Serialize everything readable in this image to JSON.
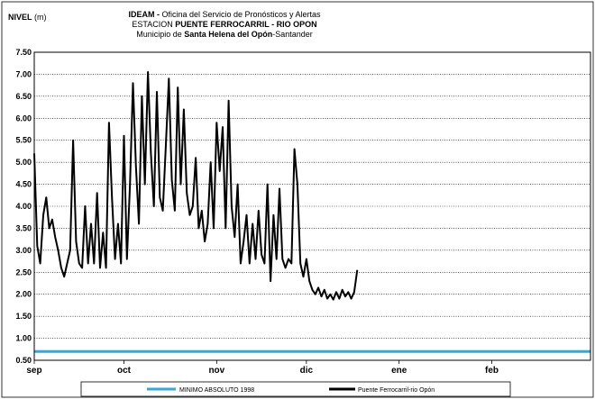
{
  "chart_data": {
    "type": "line",
    "ylabel_bold": "NIVEL",
    "ylabel_unit": "(m)",
    "title_lines": [
      {
        "bold_prefix": "IDEAM - ",
        "text": "Oficina del Servicio de Pronósticos y Alertas"
      },
      {
        "prefix": "ESTACION ",
        "bold": "PUENTE FERROCARRIL - RIO OPON"
      },
      {
        "prefix": "Municipio de ",
        "bold": "Santa Helena del Opón",
        "suffix": "-Santander"
      }
    ],
    "ylim": [
      0.5,
      7.5
    ],
    "yticks": [
      "7.50",
      "7.00",
      "6.50",
      "6.00",
      "5.50",
      "5.00",
      "4.50",
      "4.00",
      "3.50",
      "3.00",
      "2.50",
      "2.00",
      "1.50",
      "1.00",
      "0.50"
    ],
    "ytick_values": [
      7.5,
      7.0,
      6.5,
      6.0,
      5.5,
      5.0,
      4.5,
      4.0,
      3.5,
      3.0,
      2.5,
      2.0,
      1.5,
      1.0,
      0.5
    ],
    "xlim": [
      "2023-09-01",
      "2024-03-05"
    ],
    "xticks": [
      {
        "label": "sep",
        "date": "2023-09-01"
      },
      {
        "label": "oct",
        "date": "2023-10-01"
      },
      {
        "label": "nov",
        "date": "2023-11-01"
      },
      {
        "label": "dic",
        "date": "2023-12-01"
      },
      {
        "label": "ene",
        "date": "2024-01-01"
      },
      {
        "label": "feb",
        "date": "2024-02-01"
      }
    ],
    "grid": true,
    "legend_position": "bottom",
    "series": [
      {
        "name": "MINIMO ABSOLUTO 1998",
        "color": "#33a8dd",
        "constant": 0.7
      },
      {
        "name": "Puente Ferrocarril-rio Opón",
        "color": "#000000",
        "x": [
          "2023-09-01",
          "2023-09-02",
          "2023-09-03",
          "2023-09-04",
          "2023-09-05",
          "2023-09-06",
          "2023-09-07",
          "2023-09-08",
          "2023-09-09",
          "2023-09-10",
          "2023-09-11",
          "2023-09-12",
          "2023-09-13",
          "2023-09-14",
          "2023-09-15",
          "2023-09-16",
          "2023-09-17",
          "2023-09-18",
          "2023-09-19",
          "2023-09-20",
          "2023-09-21",
          "2023-09-22",
          "2023-09-23",
          "2023-09-24",
          "2023-09-25",
          "2023-09-26",
          "2023-09-27",
          "2023-09-28",
          "2023-09-29",
          "2023-09-30",
          "2023-10-01",
          "2023-10-02",
          "2023-10-03",
          "2023-10-04",
          "2023-10-05",
          "2023-10-06",
          "2023-10-07",
          "2023-10-08",
          "2023-10-09",
          "2023-10-10",
          "2023-10-11",
          "2023-10-12",
          "2023-10-13",
          "2023-10-14",
          "2023-10-15",
          "2023-10-16",
          "2023-10-17",
          "2023-10-18",
          "2023-10-19",
          "2023-10-20",
          "2023-10-21",
          "2023-10-22",
          "2023-10-23",
          "2023-10-24",
          "2023-10-25",
          "2023-10-26",
          "2023-10-27",
          "2023-10-28",
          "2023-10-29",
          "2023-10-30",
          "2023-10-31",
          "2023-11-01",
          "2023-11-02",
          "2023-11-03",
          "2023-11-04",
          "2023-11-05",
          "2023-11-06",
          "2023-11-07",
          "2023-11-08",
          "2023-11-09",
          "2023-11-10",
          "2023-11-11",
          "2023-11-12",
          "2023-11-13",
          "2023-11-14",
          "2023-11-15",
          "2023-11-16",
          "2023-11-17",
          "2023-11-18",
          "2023-11-19",
          "2023-11-20",
          "2023-11-21",
          "2023-11-22",
          "2023-11-23",
          "2023-11-24",
          "2023-11-25",
          "2023-11-26",
          "2023-11-27",
          "2023-11-28",
          "2023-11-29",
          "2023-11-30",
          "2023-12-01",
          "2023-12-02",
          "2023-12-03",
          "2023-12-04",
          "2023-12-05",
          "2023-12-06",
          "2023-12-07",
          "2023-12-08",
          "2023-12-09",
          "2023-12-10",
          "2023-12-11",
          "2023-12-12",
          "2023-12-13",
          "2023-12-14",
          "2023-12-15",
          "2023-12-16",
          "2023-12-17",
          "2023-12-18"
        ],
        "y": [
          5.2,
          3.1,
          2.7,
          3.8,
          4.2,
          3.5,
          3.7,
          3.3,
          3.0,
          2.6,
          2.4,
          2.7,
          3.0,
          5.5,
          3.2,
          2.7,
          2.6,
          4.0,
          2.7,
          3.6,
          2.7,
          4.3,
          2.6,
          3.4,
          2.6,
          5.9,
          4.2,
          2.8,
          3.6,
          2.7,
          5.6,
          2.8,
          4.5,
          6.8,
          4.9,
          3.6,
          6.5,
          4.5,
          7.05,
          5.2,
          4.0,
          6.6,
          4.2,
          3.9,
          5.4,
          6.9,
          4.6,
          3.9,
          6.7,
          4.5,
          6.2,
          4.3,
          3.8,
          4.0,
          5.1,
          3.5,
          3.9,
          3.2,
          3.6,
          5.0,
          3.5,
          5.9,
          4.8,
          5.8,
          3.5,
          6.4,
          4.0,
          3.3,
          4.5,
          2.7,
          3.2,
          3.8,
          2.7,
          3.6,
          2.8,
          3.9,
          2.9,
          2.7,
          4.5,
          2.3,
          3.8,
          2.8,
          4.4,
          2.8,
          2.6,
          2.8,
          2.7,
          5.3,
          4.5,
          2.7,
          2.4,
          2.8,
          2.3,
          2.1,
          2.0,
          2.15,
          1.95,
          2.1,
          1.9,
          2.0,
          1.88,
          2.05,
          1.9,
          2.1,
          1.95,
          2.05,
          1.9,
          2.05,
          2.55
        ]
      }
    ]
  }
}
